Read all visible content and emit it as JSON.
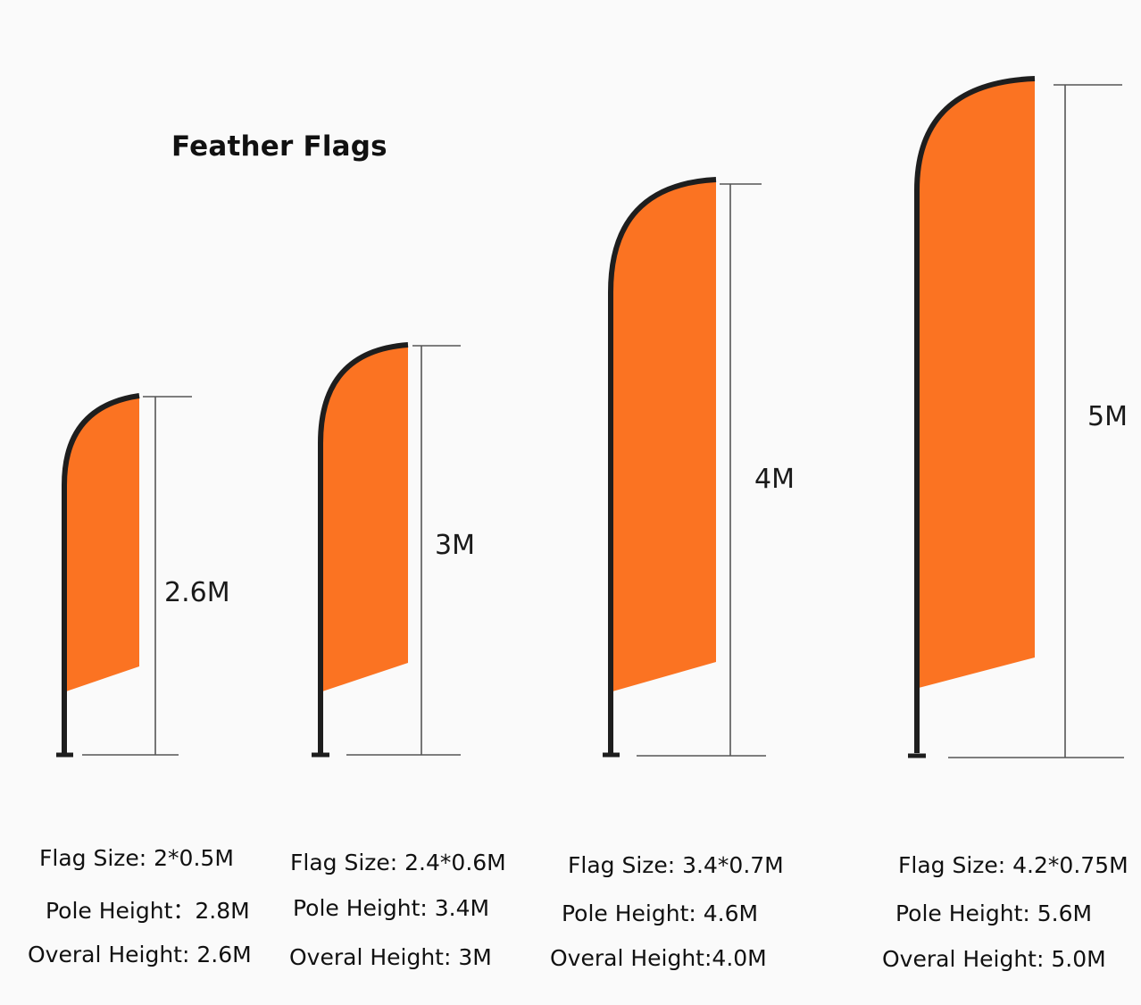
{
  "title": "Feather Flags",
  "colors": {
    "flag": "#fb7322",
    "pole": "#1e1e1e",
    "dimension_line": "#555555"
  },
  "flags": [
    {
      "dimension_label": "2.6M",
      "flag_size": "Flag Size: 2*0.5M",
      "pole_height": "Pole Height：2.8M",
      "overall_height": "Overal Height: 2.6M"
    },
    {
      "dimension_label": "3M",
      "flag_size": "Flag Size: 2.4*0.6M",
      "pole_height": "Pole Height: 3.4M",
      "overall_height": "Overal Height: 3M"
    },
    {
      "dimension_label": "4M",
      "flag_size": "Flag Size: 3.4*0.7M",
      "pole_height": "Pole Height: 4.6M",
      "overall_height": "Overal Height:4.0M"
    },
    {
      "dimension_label": "5M",
      "flag_size": "Flag Size: 4.2*0.75M",
      "pole_height": "Pole Height: 5.6M",
      "overall_height": "Overal Height: 5.0M"
    }
  ]
}
